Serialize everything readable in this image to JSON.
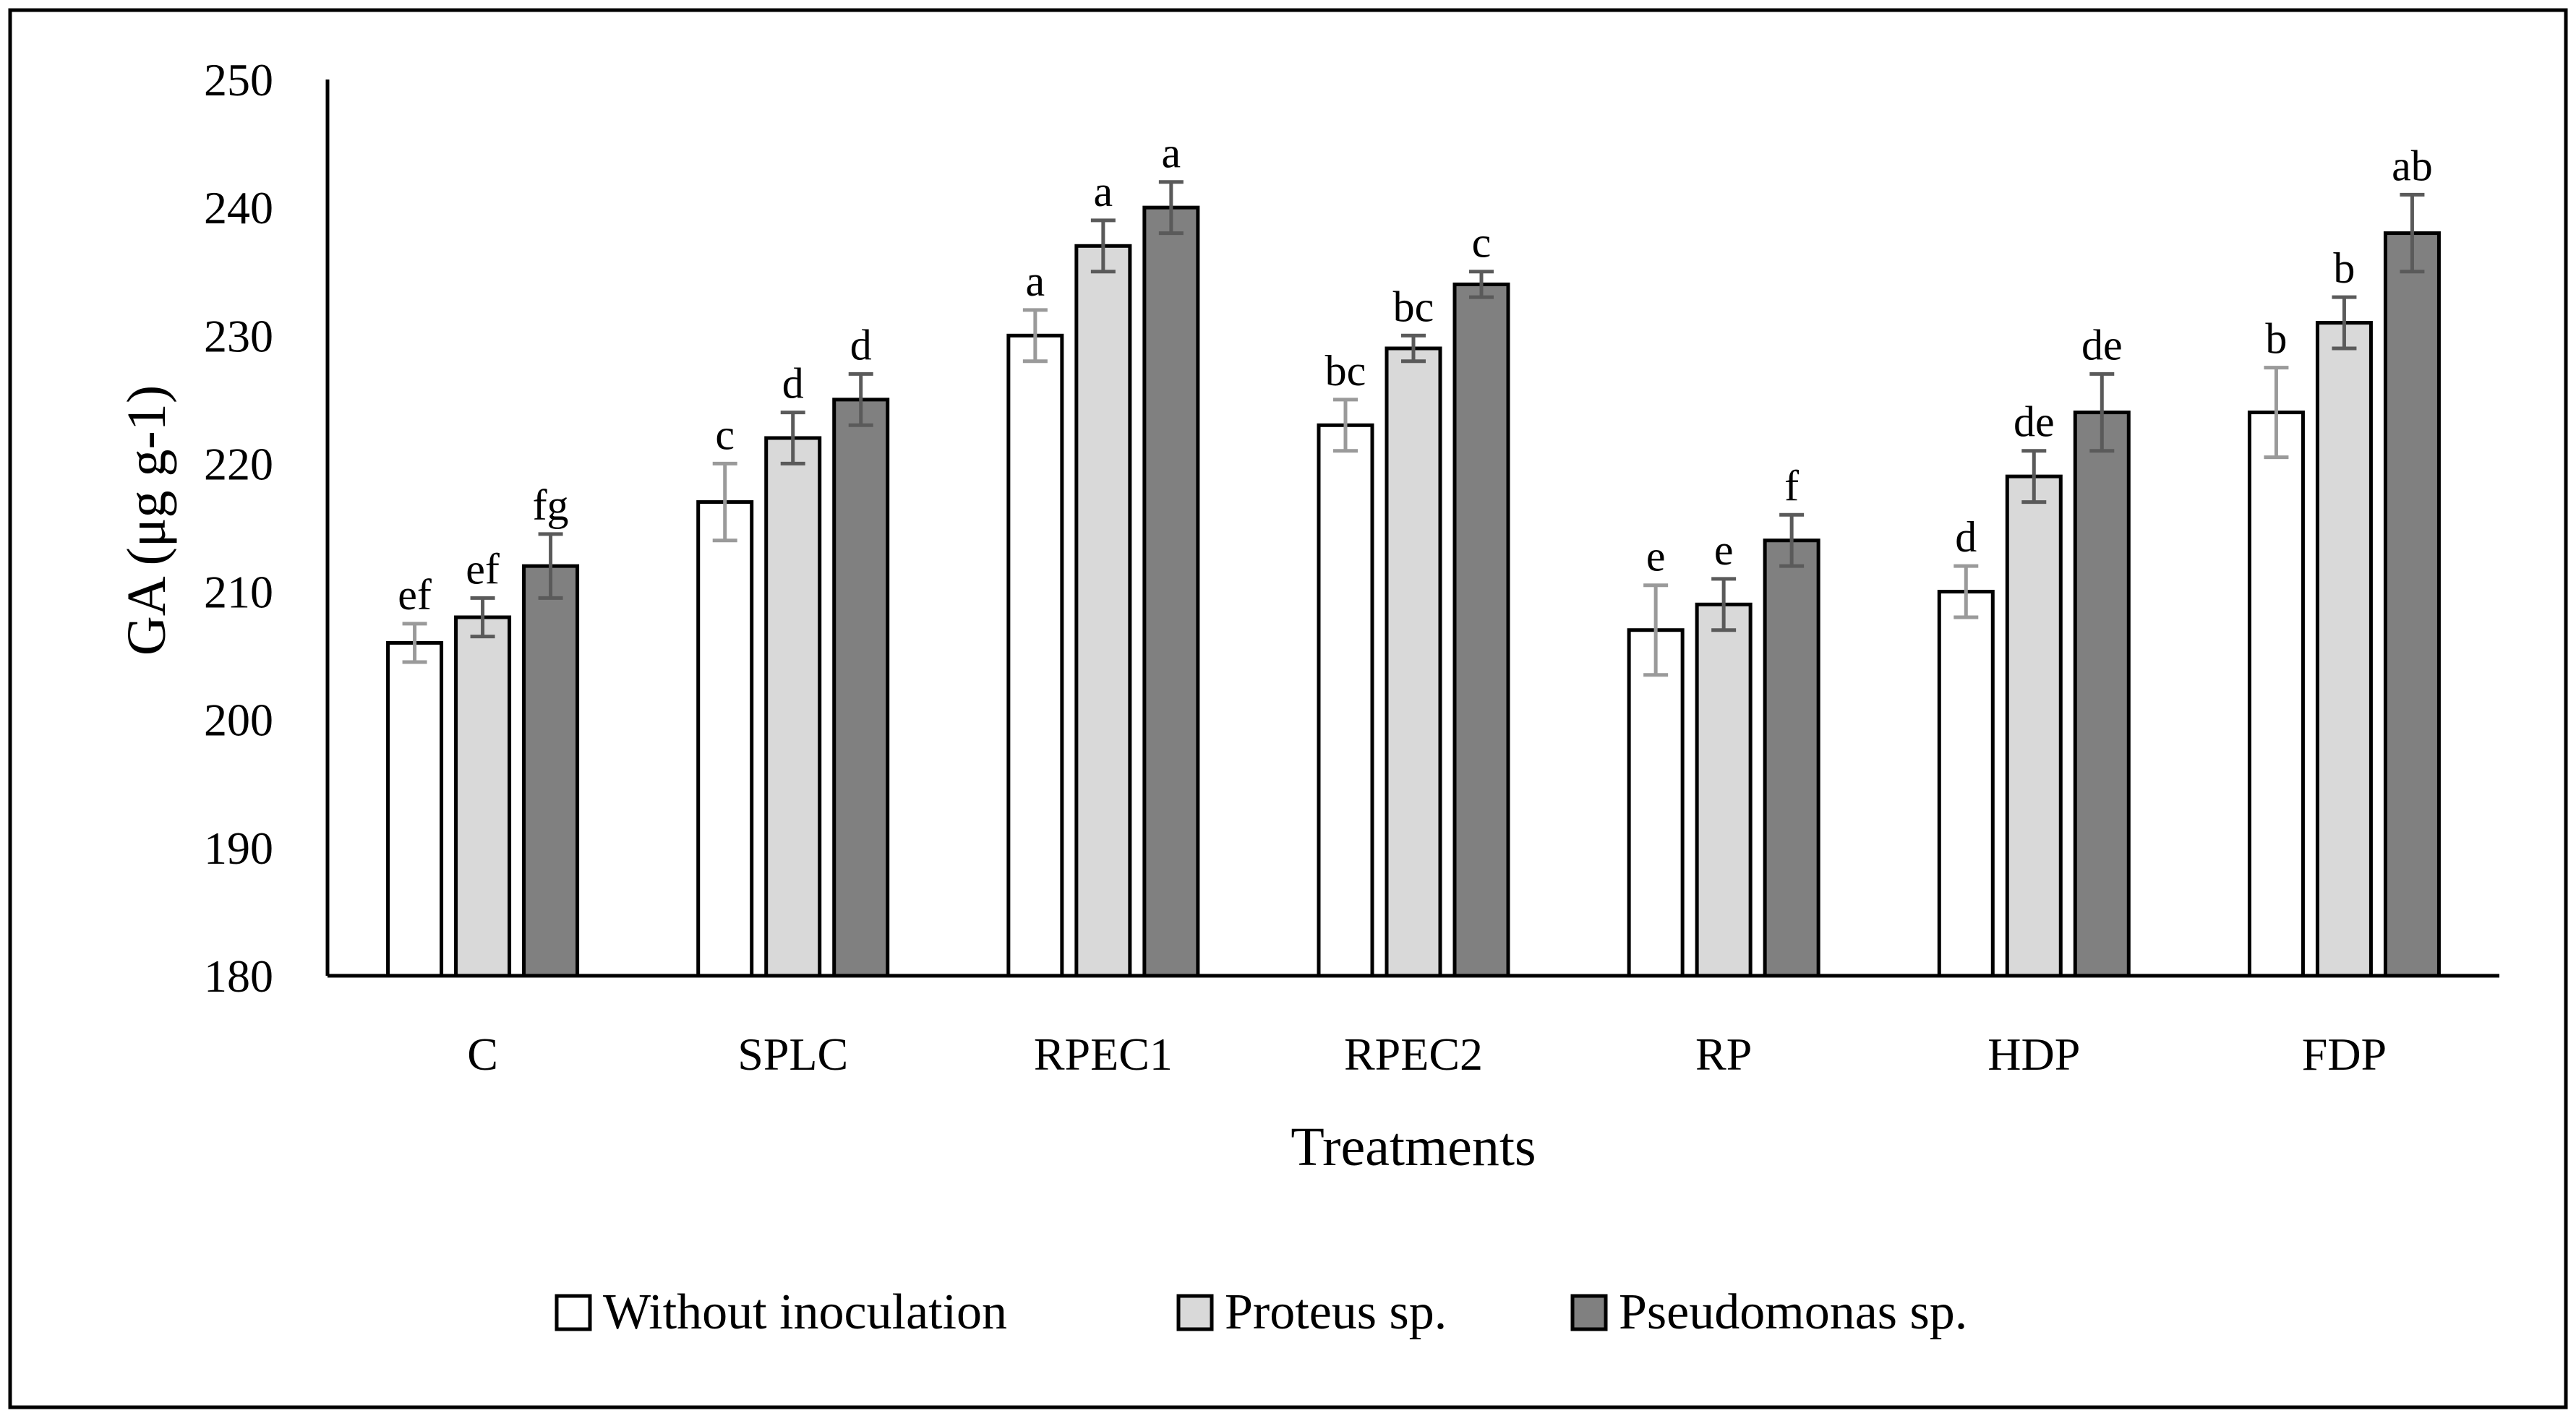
{
  "chart_data": {
    "type": "bar",
    "title": "",
    "xlabel": "Treatments",
    "ylabel": "GA (μg g-1)",
    "ylim": [
      180,
      250
    ],
    "yticks": [
      "180",
      "190",
      "200",
      "210",
      "220",
      "230",
      "240",
      "250"
    ],
    "ytick_values": [
      180,
      190,
      200,
      210,
      220,
      230,
      240,
      250
    ],
    "grid": false,
    "legend_position": "bottom",
    "categories": [
      "C",
      "SPLC",
      "RPEC1",
      "RPEC2",
      "RP",
      "HDP",
      "FDP"
    ],
    "series": [
      {
        "name": "Without inoculation",
        "color": "#ffffff",
        "values": [
          206,
          217,
          230,
          223,
          207,
          210,
          224
        ],
        "errors": [
          1.5,
          3.0,
          2.0,
          2.0,
          3.5,
          2.0,
          3.5
        ],
        "labels": [
          "ef",
          "c",
          "a",
          "bc",
          "e",
          "d",
          "b"
        ]
      },
      {
        "name": "Proteus sp.",
        "color": "#d9d9d9",
        "values": [
          208,
          222,
          237,
          229,
          209,
          219,
          231
        ],
        "errors": [
          1.5,
          2.0,
          2.0,
          1.0,
          2.0,
          2.0,
          2.0
        ],
        "labels": [
          "ef",
          "d",
          "a",
          "bc",
          "e",
          "de",
          "b"
        ]
      },
      {
        "name": "Pseudomonas sp.",
        "color": "#808080",
        "values": [
          212,
          225,
          240,
          234,
          214,
          224,
          238
        ],
        "errors": [
          2.5,
          2.0,
          2.0,
          1.0,
          2.0,
          3.0,
          3.0
        ],
        "labels": [
          "fg",
          "d",
          "a",
          "c",
          "f",
          "de",
          "ab"
        ]
      }
    ]
  }
}
